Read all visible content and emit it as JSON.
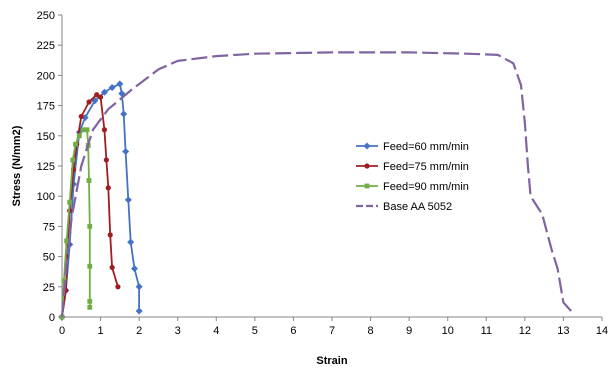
{
  "chart_data": {
    "type": "line",
    "title": "",
    "xlabel": "Strain",
    "ylabel": "Stress (N/mm2)",
    "xlim": [
      0,
      14
    ],
    "ylim": [
      0,
      250
    ],
    "x_ticks": [
      "0",
      "1",
      "2",
      "3",
      "4",
      "5",
      "6",
      "7",
      "8",
      "9",
      "10",
      "11",
      "12",
      "13",
      "14"
    ],
    "y_ticks": [
      "0",
      "25",
      "50",
      "75",
      "100",
      "125",
      "150",
      "175",
      "200",
      "225",
      "250"
    ],
    "grid": false,
    "legend_position": "right",
    "series": [
      {
        "name": "Feed=60 mm/min",
        "color": "#4472C4",
        "style": "solid",
        "marker": "diamond",
        "points": [
          [
            0,
            0
          ],
          [
            0.1,
            22
          ],
          [
            0.2,
            60
          ],
          [
            0.3,
            110
          ],
          [
            0.45,
            153
          ],
          [
            0.6,
            165
          ],
          [
            0.85,
            179
          ],
          [
            1.1,
            186
          ],
          [
            1.3,
            190
          ],
          [
            1.5,
            193
          ],
          [
            1.55,
            185
          ],
          [
            1.6,
            168
          ],
          [
            1.65,
            137
          ],
          [
            1.72,
            97
          ],
          [
            1.78,
            62
          ],
          [
            1.88,
            40
          ],
          [
            2.0,
            25
          ],
          [
            2.0,
            5
          ]
        ]
      },
      {
        "name": "Feed=75 mm/min",
        "color": "#A01E22",
        "style": "solid",
        "marker": "circle",
        "points": [
          [
            0,
            0
          ],
          [
            0.1,
            22
          ],
          [
            0.15,
            60
          ],
          [
            0.2,
            88
          ],
          [
            0.3,
            122
          ],
          [
            0.38,
            143
          ],
          [
            0.5,
            166
          ],
          [
            0.7,
            178
          ],
          [
            0.9,
            184
          ],
          [
            1.0,
            182
          ],
          [
            1.1,
            155
          ],
          [
            1.15,
            130
          ],
          [
            1.2,
            107
          ],
          [
            1.25,
            68
          ],
          [
            1.3,
            41
          ],
          [
            1.45,
            25
          ]
        ]
      },
      {
        "name": "Feed=90 mm/min",
        "color": "#70AD47",
        "style": "solid",
        "marker": "square",
        "points": [
          [
            0,
            0
          ],
          [
            0.05,
            30
          ],
          [
            0.12,
            63
          ],
          [
            0.2,
            95
          ],
          [
            0.28,
            130
          ],
          [
            0.35,
            143
          ],
          [
            0.45,
            150
          ],
          [
            0.55,
            155
          ],
          [
            0.65,
            155
          ],
          [
            0.68,
            142
          ],
          [
            0.7,
            113
          ],
          [
            0.72,
            75
          ],
          [
            0.72,
            42
          ],
          [
            0.72,
            13
          ],
          [
            0.72,
            8
          ]
        ]
      },
      {
        "name": "Base AA 5052",
        "color": "#8064A2",
        "style": "dashed",
        "marker": "none",
        "points": [
          [
            0,
            0
          ],
          [
            0.1,
            38
          ],
          [
            0.25,
            82
          ],
          [
            0.5,
            125
          ],
          [
            0.8,
            155
          ],
          [
            1.2,
            172
          ],
          [
            1.8,
            188
          ],
          [
            2.5,
            205
          ],
          [
            3,
            212
          ],
          [
            4,
            216
          ],
          [
            5,
            218
          ],
          [
            7,
            219
          ],
          [
            9,
            219
          ],
          [
            10.5,
            218
          ],
          [
            11.3,
            217
          ],
          [
            11.7,
            210
          ],
          [
            11.9,
            192
          ],
          [
            12,
            160
          ],
          [
            12.08,
            125
          ],
          [
            12.15,
            100
          ],
          [
            12.45,
            85
          ],
          [
            12.7,
            55
          ],
          [
            12.85,
            40
          ],
          [
            13.0,
            12
          ],
          [
            13.2,
            5
          ]
        ]
      }
    ]
  }
}
